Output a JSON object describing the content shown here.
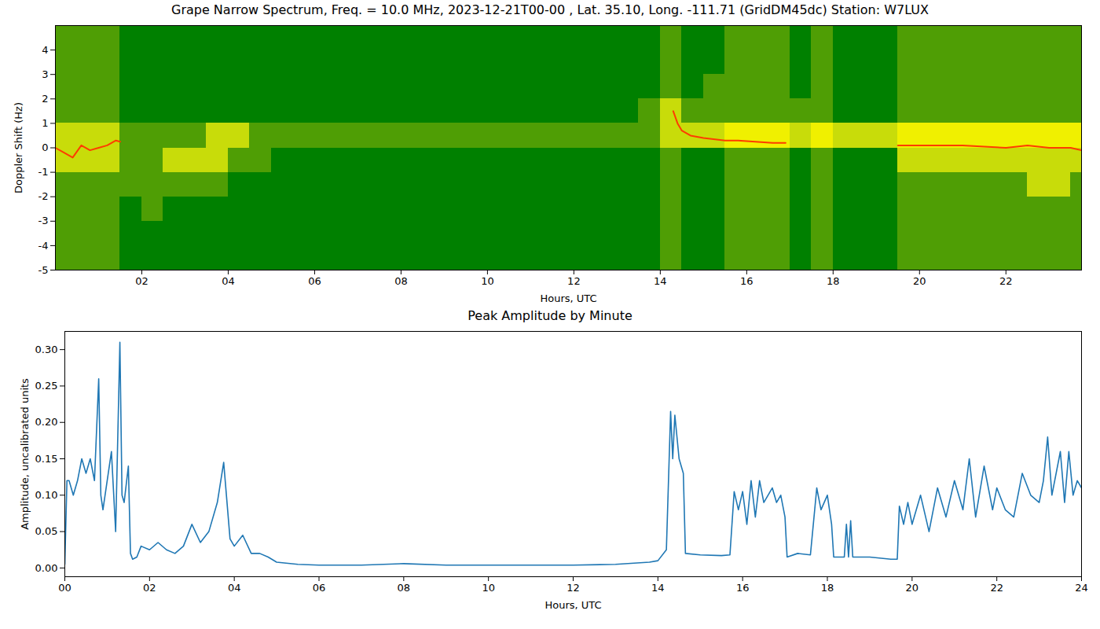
{
  "chart_data": [
    {
      "type": "heatmap",
      "title": "Grape Narrow Spectrum, Freq. = 10.0 MHz, 2023-12-21T00-00 , Lat.  35.10, Long. -111.71 (GridDM45dc) Station: W7LUX",
      "x_label": "Hours, UTC",
      "y_label": "Doppler Shift (Hz)",
      "xlim": [
        0,
        23.75
      ],
      "ylim": [
        -5,
        5
      ],
      "xticks": [
        {
          "value": 2,
          "label": "02"
        },
        {
          "value": 4,
          "label": "04"
        },
        {
          "value": 6,
          "label": "06"
        },
        {
          "value": 8,
          "label": "08"
        },
        {
          "value": 10,
          "label": "10"
        },
        {
          "value": 12,
          "label": "12"
        },
        {
          "value": 14,
          "label": "14"
        },
        {
          "value": 16,
          "label": "16"
        },
        {
          "value": 18,
          "label": "18"
        },
        {
          "value": 20,
          "label": "20"
        },
        {
          "value": 22,
          "label": "22"
        }
      ],
      "yticks": [
        -5,
        -4,
        -3,
        -2,
        -1,
        0,
        1,
        2,
        3,
        4
      ],
      "grid": false,
      "x_bins": [
        0,
        0.5,
        1,
        1.5,
        2,
        2.5,
        3,
        3.5,
        4,
        4.5,
        5,
        5.5,
        6,
        6.5,
        7,
        7.5,
        8,
        8.5,
        9,
        9.5,
        10,
        10.5,
        11,
        11.5,
        12,
        12.5,
        13,
        13.5,
        14,
        14.5,
        15,
        15.5,
        16,
        16.5,
        17,
        17.5,
        18,
        18.5,
        19,
        19.5,
        20,
        20.5,
        21,
        21.5,
        22,
        22.5,
        23,
        23.5,
        23.75
      ],
      "y_bins": [
        -5,
        -4,
        -3,
        -2,
        -1,
        0,
        1,
        2,
        3,
        4,
        5
      ],
      "levels": [
        0,
        1,
        2,
        3
      ],
      "colors": [
        "#008000",
        "#4f9e05",
        "#c8dc0a",
        "#f0f000"
      ],
      "cells": [
        [
          1,
          1,
          1,
          1,
          2,
          2,
          1,
          1,
          1,
          1
        ],
        [
          1,
          1,
          1,
          1,
          2,
          2,
          1,
          1,
          1,
          1
        ],
        [
          1,
          1,
          1,
          1,
          2,
          2,
          1,
          1,
          1,
          1
        ],
        [
          0,
          0,
          0,
          1,
          1,
          1,
          0,
          0,
          0,
          0
        ],
        [
          0,
          0,
          1,
          1,
          1,
          1,
          0,
          0,
          0,
          0
        ],
        [
          0,
          0,
          0,
          1,
          2,
          1,
          0,
          0,
          0,
          0
        ],
        [
          0,
          0,
          0,
          1,
          2,
          1,
          0,
          0,
          0,
          0
        ],
        [
          0,
          0,
          0,
          1,
          2,
          2,
          0,
          0,
          0,
          0
        ],
        [
          0,
          0,
          0,
          0,
          1,
          2,
          0,
          0,
          0,
          0
        ],
        [
          0,
          0,
          0,
          0,
          1,
          1,
          0,
          0,
          0,
          0
        ],
        [
          0,
          0,
          0,
          0,
          0,
          1,
          0,
          0,
          0,
          0
        ],
        [
          0,
          0,
          0,
          0,
          0,
          1,
          0,
          0,
          0,
          0
        ],
        [
          0,
          0,
          0,
          0,
          0,
          1,
          0,
          0,
          0,
          0
        ],
        [
          0,
          0,
          0,
          0,
          0,
          1,
          0,
          0,
          0,
          0
        ],
        [
          0,
          0,
          0,
          0,
          0,
          1,
          0,
          0,
          0,
          0
        ],
        [
          0,
          0,
          0,
          0,
          0,
          1,
          0,
          0,
          0,
          0
        ],
        [
          0,
          0,
          0,
          0,
          0,
          1,
          0,
          0,
          0,
          0
        ],
        [
          0,
          0,
          0,
          0,
          0,
          1,
          0,
          0,
          0,
          0
        ],
        [
          0,
          0,
          0,
          0,
          0,
          1,
          0,
          0,
          0,
          0
        ],
        [
          0,
          0,
          0,
          0,
          0,
          1,
          0,
          0,
          0,
          0
        ],
        [
          0,
          0,
          0,
          0,
          0,
          1,
          0,
          0,
          0,
          0
        ],
        [
          0,
          0,
          0,
          0,
          0,
          1,
          0,
          0,
          0,
          0
        ],
        [
          0,
          0,
          0,
          0,
          0,
          1,
          0,
          0,
          0,
          0
        ],
        [
          0,
          0,
          0,
          0,
          0,
          1,
          0,
          0,
          0,
          0
        ],
        [
          0,
          0,
          0,
          0,
          0,
          1,
          0,
          0,
          0,
          0
        ],
        [
          0,
          0,
          0,
          0,
          0,
          1,
          0,
          0,
          0,
          0
        ],
        [
          0,
          0,
          0,
          0,
          0,
          1,
          0,
          0,
          0,
          0
        ],
        [
          0,
          0,
          0,
          0,
          0,
          1,
          1,
          0,
          0,
          0
        ],
        [
          1,
          1,
          1,
          1,
          1,
          2,
          2,
          1,
          1,
          1
        ],
        [
          0,
          0,
          0,
          0,
          0,
          2,
          1,
          0,
          0,
          0
        ],
        [
          0,
          0,
          0,
          0,
          0,
          2,
          1,
          1,
          0,
          0
        ],
        [
          1,
          1,
          1,
          1,
          1,
          3,
          1,
          1,
          1,
          1
        ],
        [
          1,
          1,
          1,
          1,
          1,
          3,
          1,
          1,
          1,
          1
        ],
        [
          1,
          1,
          1,
          1,
          1,
          3,
          1,
          1,
          1,
          1
        ],
        [
          0,
          0,
          0,
          0,
          0,
          2,
          1,
          0,
          0,
          0
        ],
        [
          1,
          1,
          1,
          1,
          1,
          3,
          1,
          1,
          1,
          1
        ],
        [
          0,
          0,
          0,
          0,
          0,
          2,
          0,
          0,
          0,
          0
        ],
        [
          0,
          0,
          0,
          0,
          0,
          2,
          0,
          0,
          0,
          0
        ],
        [
          0,
          0,
          0,
          0,
          0,
          2,
          0,
          0,
          0,
          0
        ],
        [
          1,
          1,
          1,
          1,
          2,
          3,
          1,
          1,
          1,
          1
        ],
        [
          1,
          1,
          1,
          1,
          2,
          3,
          1,
          1,
          1,
          1
        ],
        [
          1,
          1,
          1,
          1,
          2,
          3,
          1,
          1,
          1,
          1
        ],
        [
          1,
          1,
          1,
          1,
          2,
          3,
          1,
          1,
          1,
          1
        ],
        [
          1,
          1,
          1,
          1,
          2,
          3,
          1,
          1,
          1,
          1
        ],
        [
          1,
          1,
          1,
          1,
          2,
          3,
          1,
          1,
          1,
          1
        ],
        [
          1,
          1,
          1,
          2,
          2,
          3,
          1,
          1,
          1,
          1
        ],
        [
          1,
          1,
          1,
          2,
          2,
          3,
          1,
          1,
          1,
          1
        ],
        [
          1,
          1,
          1,
          1,
          2,
          3,
          1,
          1,
          1,
          1
        ]
      ],
      "series": [
        {
          "type": "line",
          "color": "#ff3c00",
          "x": [
            0,
            0.2,
            0.4,
            0.6,
            0.8,
            1.0,
            1.2,
            1.4,
            1.5,
            2,
            14.3,
            14.4,
            14.5,
            14.7,
            15,
            15.5,
            15.8,
            16.2,
            16.6,
            16.9,
            17,
            19.5,
            20,
            20.5,
            21,
            21.5,
            22,
            22.5,
            23,
            23.5,
            23.75
          ],
          "values": [
            0,
            -0.2,
            -0.4,
            0.1,
            -0.1,
            0,
            0.1,
            0.3,
            0.25,
            null,
            1.5,
            1.0,
            0.7,
            0.5,
            0.4,
            0.3,
            0.3,
            0.25,
            0.2,
            0.2,
            null,
            0.1,
            0.1,
            0.1,
            0.1,
            0.05,
            0,
            0.1,
            0,
            0,
            -0.1
          ]
        }
      ]
    },
    {
      "type": "line",
      "title": "Peak Amplitude by Minute",
      "x_label": "Hours, UTC",
      "y_label": "Amplitude, uncalibrated units",
      "xlim": [
        0,
        24
      ],
      "ylim": [
        -0.012,
        0.325
      ],
      "xticks": [
        {
          "value": 0,
          "label": "00"
        },
        {
          "value": 2,
          "label": "02"
        },
        {
          "value": 4,
          "label": "04"
        },
        {
          "value": 6,
          "label": "06"
        },
        {
          "value": 8,
          "label": "08"
        },
        {
          "value": 10,
          "label": "10"
        },
        {
          "value": 12,
          "label": "12"
        },
        {
          "value": 14,
          "label": "14"
        },
        {
          "value": 16,
          "label": "16"
        },
        {
          "value": 18,
          "label": "18"
        },
        {
          "value": 20,
          "label": "20"
        },
        {
          "value": 22,
          "label": "22"
        },
        {
          "value": 24,
          "label": "24"
        }
      ],
      "yticks": [
        {
          "value": 0,
          "label": "0.00"
        },
        {
          "value": 0.05,
          "label": "0.05"
        },
        {
          "value": 0.1,
          "label": "0.10"
        },
        {
          "value": 0.15,
          "label": "0.15"
        },
        {
          "value": 0.2,
          "label": "0.20"
        },
        {
          "value": 0.25,
          "label": "0.25"
        },
        {
          "value": 0.3,
          "label": "0.30"
        }
      ],
      "grid": false,
      "color": "#1f77b4",
      "x": [
        0,
        0.05,
        0.1,
        0.2,
        0.3,
        0.4,
        0.5,
        0.6,
        0.7,
        0.8,
        0.85,
        0.9,
        1.0,
        1.1,
        1.2,
        1.3,
        1.35,
        1.4,
        1.5,
        1.55,
        1.6,
        1.7,
        1.8,
        2.0,
        2.2,
        2.4,
        2.6,
        2.8,
        3.0,
        3.2,
        3.4,
        3.6,
        3.75,
        3.9,
        4.0,
        4.2,
        4.4,
        4.6,
        4.8,
        5.0,
        5.5,
        6,
        7,
        8,
        9,
        10,
        11,
        12,
        13,
        13.8,
        14.0,
        14.2,
        14.3,
        14.35,
        14.4,
        14.5,
        14.6,
        14.65,
        15.0,
        15.5,
        15.7,
        15.8,
        15.9,
        16.0,
        16.1,
        16.2,
        16.3,
        16.4,
        16.5,
        16.6,
        16.7,
        16.8,
        16.9,
        17.0,
        17.05,
        17.3,
        17.6,
        17.75,
        17.85,
        18.0,
        18.1,
        18.15,
        18.4,
        18.45,
        18.5,
        18.55,
        18.6,
        19.0,
        19.5,
        19.65,
        19.7,
        19.8,
        19.9,
        20.0,
        20.2,
        20.4,
        20.6,
        20.8,
        21.0,
        21.2,
        21.35,
        21.5,
        21.7,
        21.9,
        22.0,
        22.2,
        22.4,
        22.6,
        22.8,
        23.0,
        23.1,
        23.2,
        23.3,
        23.5,
        23.6,
        23.7,
        23.8,
        23.9,
        24.0
      ],
      "values": [
        0.005,
        0.12,
        0.12,
        0.1,
        0.12,
        0.15,
        0.13,
        0.15,
        0.12,
        0.26,
        0.1,
        0.08,
        0.12,
        0.16,
        0.05,
        0.31,
        0.1,
        0.09,
        0.14,
        0.02,
        0.012,
        0.015,
        0.03,
        0.025,
        0.035,
        0.025,
        0.02,
        0.03,
        0.06,
        0.035,
        0.05,
        0.09,
        0.145,
        0.04,
        0.03,
        0.045,
        0.02,
        0.02,
        0.015,
        0.008,
        0.005,
        0.004,
        0.004,
        0.006,
        0.004,
        0.004,
        0.004,
        0.004,
        0.005,
        0.008,
        0.01,
        0.025,
        0.215,
        0.15,
        0.21,
        0.15,
        0.13,
        0.02,
        0.018,
        0.017,
        0.018,
        0.105,
        0.08,
        0.105,
        0.06,
        0.12,
        0.07,
        0.12,
        0.09,
        0.1,
        0.11,
        0.09,
        0.1,
        0.07,
        0.015,
        0.02,
        0.018,
        0.11,
        0.08,
        0.1,
        0.06,
        0.015,
        0.015,
        0.06,
        0.015,
        0.065,
        0.015,
        0.015,
        0.012,
        0.012,
        0.085,
        0.06,
        0.09,
        0.06,
        0.1,
        0.05,
        0.11,
        0.07,
        0.12,
        0.08,
        0.15,
        0.07,
        0.14,
        0.08,
        0.11,
        0.08,
        0.07,
        0.13,
        0.1,
        0.09,
        0.12,
        0.18,
        0.1,
        0.16,
        0.09,
        0.16,
        0.1,
        0.12,
        0.11
      ]
    }
  ]
}
